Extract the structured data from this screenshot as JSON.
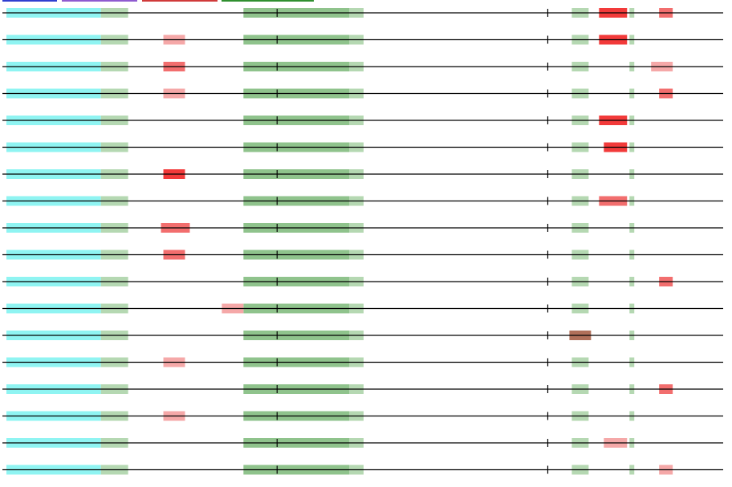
{
  "viewer": {
    "type": "sequence-feature-tracks",
    "colors": {
      "backbone": "#000000",
      "cyan_region": "#8ff4f2",
      "green_region": "#8fc38c",
      "green_light": "#b5d8b2",
      "red_strong": "#f23a3a",
      "red_medium": "#f26e6e",
      "red_light": "#f5a8a8",
      "brown": "#b0705a",
      "legend_blue": "#2f3fd0",
      "legend_purple": "#8f5bd0",
      "legend_red": "#d03a3a",
      "legend_green": "#2f8f2f"
    },
    "legend": [
      {
        "color": "legend_blue",
        "name": ""
      },
      {
        "color": "legend_purple",
        "name": ""
      },
      {
        "color": "legend_red",
        "name": ""
      },
      {
        "color": "legend_green",
        "name": ""
      }
    ],
    "sequence_length": 900,
    "common_features": [
      {
        "start": 5,
        "end": 13,
        "color": "green_region"
      },
      {
        "start": 5,
        "end": 123,
        "color": "cyan_region"
      },
      {
        "start": 123,
        "end": 157,
        "color": "green_light"
      },
      {
        "start": 301,
        "end": 451,
        "color": "green_region"
      },
      {
        "start": 433,
        "end": 451,
        "color": "green_light"
      },
      {
        "start": 711,
        "end": 732,
        "color": "green_light"
      },
      {
        "start": 783,
        "end": 789,
        "color": "green_light"
      }
    ],
    "ticks": [
      343,
      681
    ],
    "tracks": [
      {
        "features": [
          {
            "start": 745,
            "end": 780,
            "color": "red_strong"
          },
          {
            "start": 820,
            "end": 837,
            "color": "red_medium"
          }
        ]
      },
      {
        "features": [
          {
            "start": 201,
            "end": 228,
            "color": "red_light"
          },
          {
            "start": 745,
            "end": 780,
            "color": "red_strong"
          }
        ]
      },
      {
        "features": [
          {
            "start": 201,
            "end": 228,
            "color": "red_medium"
          },
          {
            "start": 810,
            "end": 837,
            "color": "red_light"
          }
        ]
      },
      {
        "features": [
          {
            "start": 201,
            "end": 228,
            "color": "red_light"
          },
          {
            "start": 820,
            "end": 837,
            "color": "red_medium"
          }
        ]
      },
      {
        "features": [
          {
            "start": 745,
            "end": 780,
            "color": "red_strong"
          }
        ]
      },
      {
        "features": [
          {
            "start": 751,
            "end": 780,
            "color": "red_strong"
          }
        ]
      },
      {
        "features": [
          {
            "start": 201,
            "end": 228,
            "color": "red_strong"
          }
        ]
      },
      {
        "features": [
          {
            "start": 745,
            "end": 780,
            "color": "red_medium"
          }
        ]
      },
      {
        "features": [
          {
            "start": 198,
            "end": 234,
            "color": "red_medium"
          }
        ]
      },
      {
        "features": [
          {
            "start": 201,
            "end": 228,
            "color": "red_medium"
          }
        ]
      },
      {
        "features": [
          {
            "start": 820,
            "end": 837,
            "color": "red_medium"
          }
        ]
      },
      {
        "features": [
          {
            "start": 274,
            "end": 301,
            "color": "red_light"
          }
        ]
      },
      {
        "features": [
          {
            "start": 708,
            "end": 735,
            "color": "brown"
          }
        ]
      },
      {
        "features": [
          {
            "start": 201,
            "end": 228,
            "color": "red_light"
          }
        ]
      },
      {
        "features": [
          {
            "start": 820,
            "end": 837,
            "color": "red_medium"
          }
        ]
      },
      {
        "features": [
          {
            "start": 201,
            "end": 228,
            "color": "red_light"
          }
        ]
      },
      {
        "features": [
          {
            "start": 751,
            "end": 780,
            "color": "red_light"
          }
        ]
      },
      {
        "features": [
          {
            "start": 820,
            "end": 837,
            "color": "red_light"
          }
        ]
      }
    ]
  }
}
